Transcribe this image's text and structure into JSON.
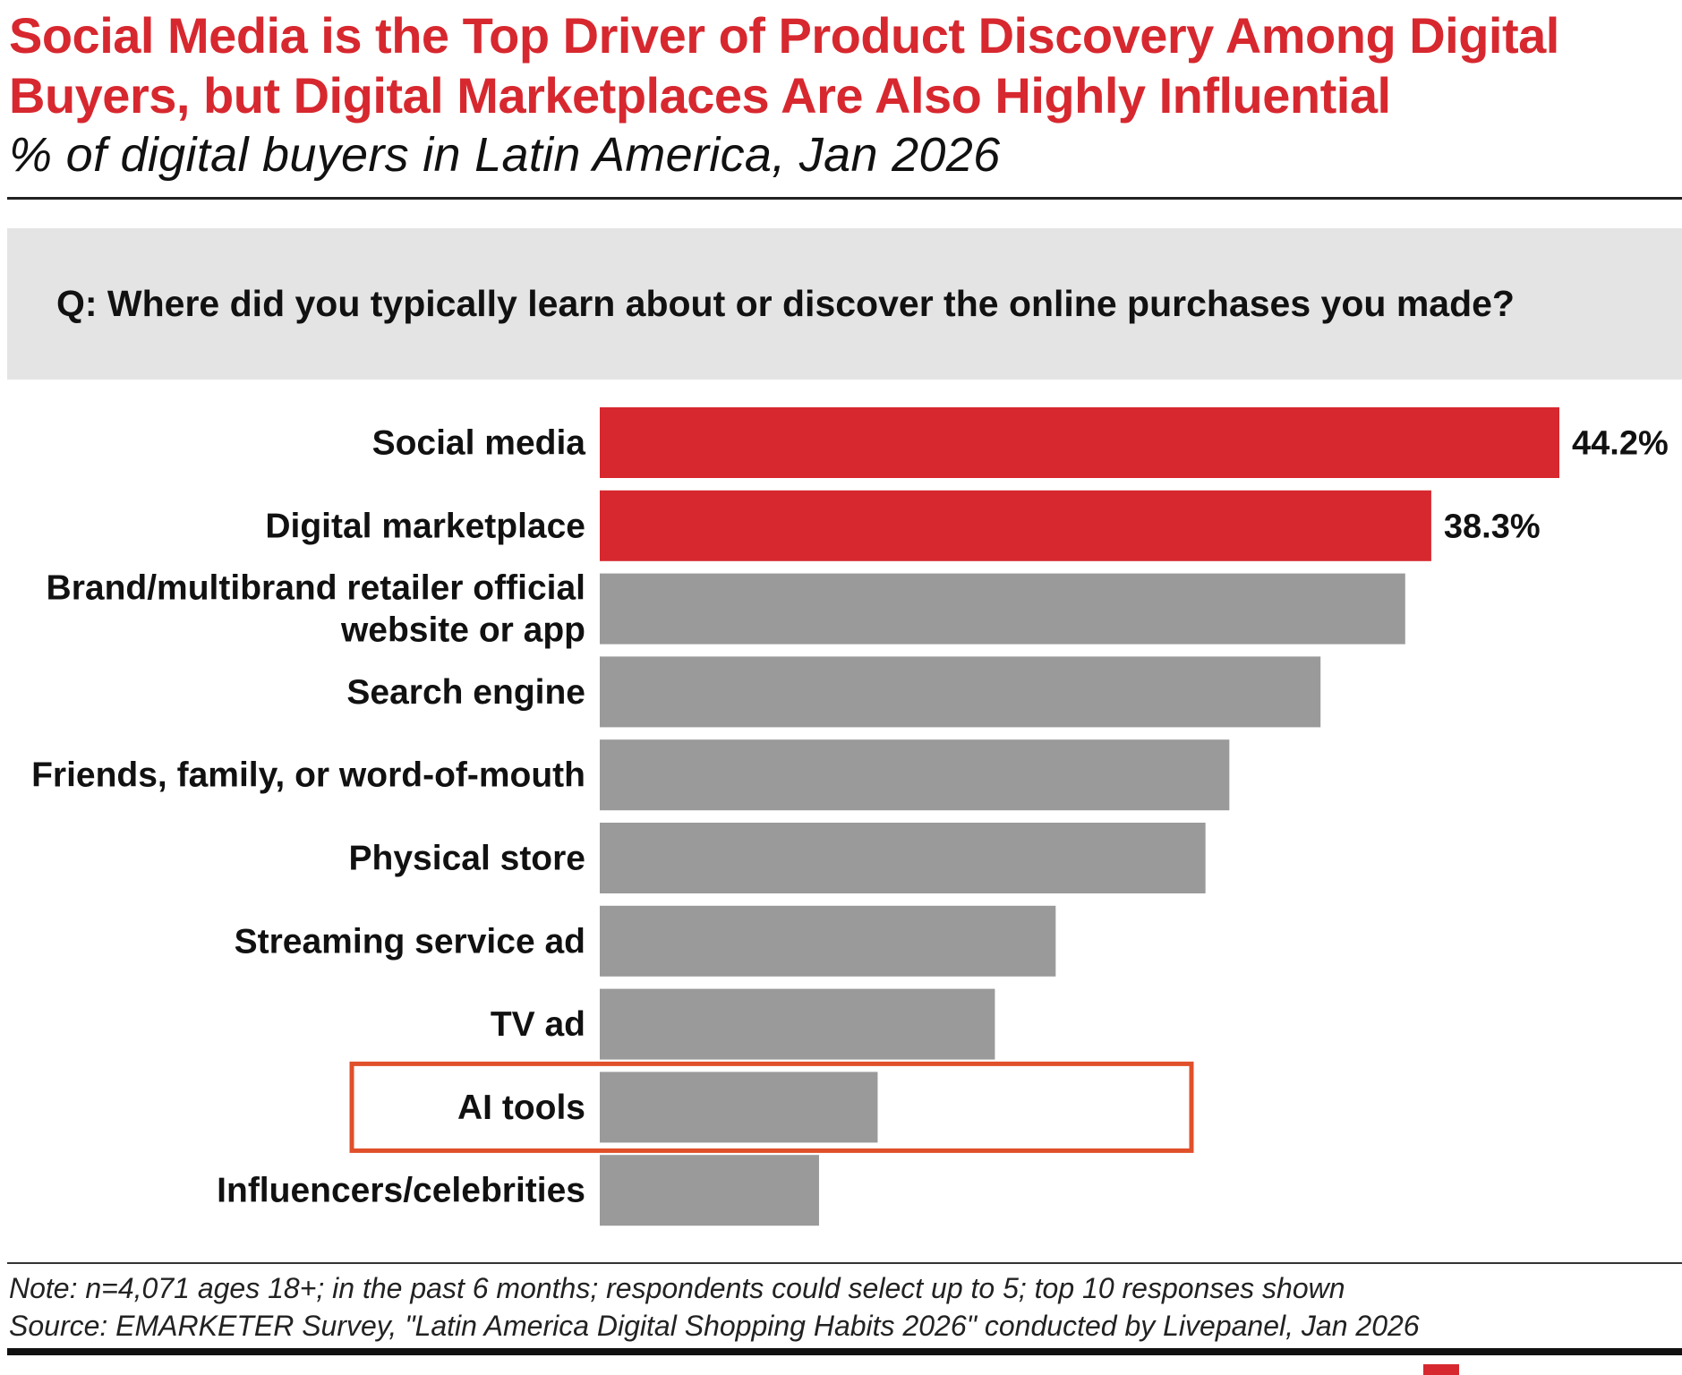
{
  "header": {
    "title": "Social Media is the Top Driver of Product Discovery Among Digital Buyers, but Digital Marketplaces Are Also Highly Influential",
    "subtitle": "% of digital buyers in Latin America, Jan 2026"
  },
  "question": "Q: Where did you typically learn about or discover the online purchases you made?",
  "chart_data": {
    "type": "bar",
    "orientation": "horizontal",
    "categories": [
      "Social media",
      "Digital marketplace",
      "Brand/multibrand retailer official website or app",
      "Search engine",
      "Friends, family, or word-of-mouth",
      "Physical store",
      "Streaming service ad",
      "TV ad",
      "AI tools",
      "Influencers/celebrities"
    ],
    "label_lines": [
      [
        "Social media"
      ],
      [
        "Digital marketplace"
      ],
      [
        "Brand/multibrand retailer official",
        "website or app"
      ],
      [
        "Search engine"
      ],
      [
        "Friends, family, or word-of-mouth"
      ],
      [
        "Physical store"
      ],
      [
        "Streaming service ad"
      ],
      [
        "TV ad"
      ],
      [
        "AI tools"
      ],
      [
        "Influencers/celebrities"
      ]
    ],
    "values": [
      44.2,
      38.3,
      37.1,
      33.2,
      29.0,
      27.9,
      21.0,
      18.2,
      12.8,
      10.1
    ],
    "value_labels": [
      "44.2%",
      "38.3%",
      "",
      "",
      "",
      "",
      "",
      "",
      "",
      ""
    ],
    "highlighted": [
      true,
      true,
      false,
      false,
      false,
      false,
      false,
      false,
      false,
      false
    ],
    "annotated_category": "AI tools",
    "xlim": [
      0,
      44.2
    ],
    "colors": {
      "highlight": "#d7282f",
      "default": "#9a9a9a",
      "annotation": "#e0502a"
    }
  },
  "footer": {
    "note": "Note: n=4,071 ages 18+; in the past 6 months; respondents could select up to 5; top 10 responses shown",
    "source": "Source: EMARKETER Survey, \"Latin America Digital Shopping Habits 2026\" conducted by Livepanel, Jan 2026"
  }
}
